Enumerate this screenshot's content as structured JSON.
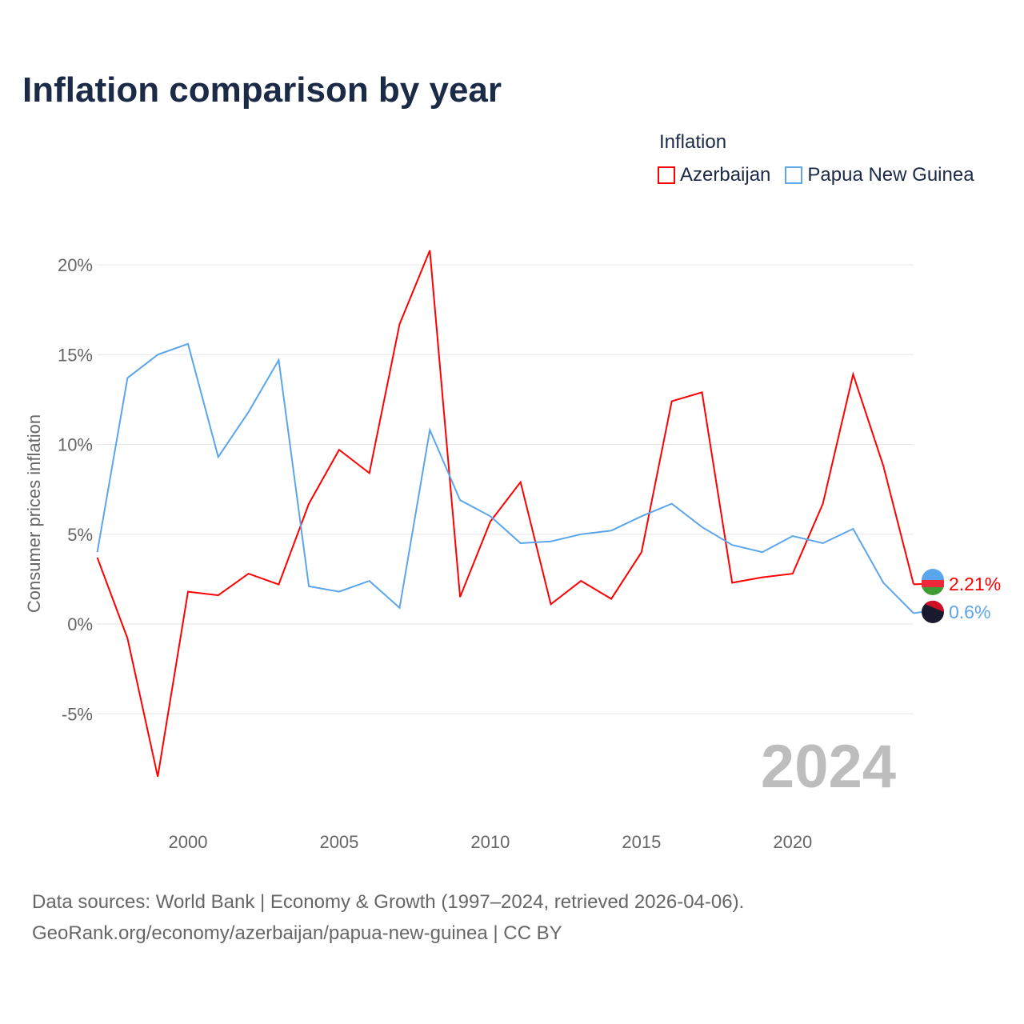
{
  "title": "Inflation comparison by year",
  "legend": {
    "title": "Inflation",
    "items": [
      {
        "label": "Azerbaijan",
        "color": "#ff0000"
      },
      {
        "label": "Papua New Guinea",
        "color": "#5aa5ec"
      }
    ]
  },
  "source": {
    "line1": "Data sources: World Bank | Economy & Growth (1997–2024, retrieved 2026-04-06).",
    "line2": "GeoRank.org/economy/azerbaijan/papua-new-guinea | CC BY"
  },
  "chart_data": {
    "type": "line",
    "title": "Inflation comparison by year",
    "ylabel": "Consumer prices inflation",
    "xlabel": "",
    "xlim": [
      1997,
      2024
    ],
    "ylim": [
      -10,
      22
    ],
    "yticks": [
      -5,
      0,
      5,
      10,
      15,
      20
    ],
    "ytick_labels": [
      "-5%",
      "0%",
      "5%",
      "10%",
      "15%",
      "20%"
    ],
    "xticks": [
      2000,
      2005,
      2010,
      2015,
      2020
    ],
    "xtick_labels": [
      "2000",
      "2005",
      "2010",
      "2015",
      "2020"
    ],
    "year_label": "2024",
    "x": [
      1997,
      1998,
      1999,
      2000,
      2001,
      2002,
      2003,
      2004,
      2005,
      2006,
      2007,
      2008,
      2009,
      2010,
      2011,
      2012,
      2013,
      2014,
      2015,
      2016,
      2017,
      2018,
      2019,
      2020,
      2021,
      2022,
      2023,
      2024
    ],
    "series": [
      {
        "name": "Azerbaijan",
        "color": "#ff0000",
        "end_label": "2.21%",
        "values": [
          3.7,
          -0.8,
          -8.5,
          1.8,
          1.6,
          2.8,
          2.2,
          6.7,
          9.7,
          8.4,
          16.7,
          20.8,
          1.5,
          5.7,
          7.9,
          1.1,
          2.4,
          1.4,
          4.0,
          12.4,
          12.9,
          2.3,
          2.6,
          2.8,
          6.7,
          13.9,
          8.8,
          2.21
        ]
      },
      {
        "name": "Papua New Guinea",
        "color": "#5aa5ec",
        "end_label": "0.6%",
        "values": [
          4.0,
          13.7,
          15.0,
          15.6,
          9.3,
          11.8,
          14.7,
          2.1,
          1.8,
          2.4,
          0.9,
          10.8,
          6.9,
          6.0,
          4.5,
          4.6,
          5.0,
          5.2,
          6.0,
          6.7,
          5.4,
          4.4,
          4.0,
          4.9,
          4.5,
          5.3,
          2.3,
          0.6
        ]
      }
    ]
  }
}
